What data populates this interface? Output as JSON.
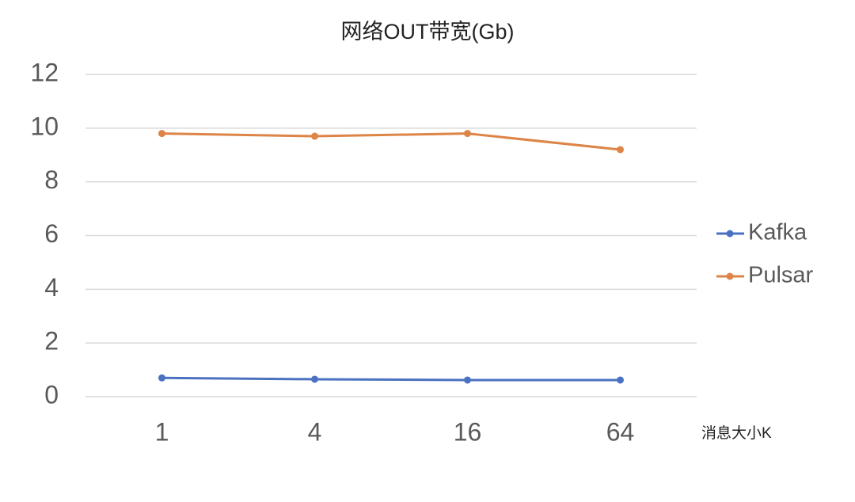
{
  "chart_data": {
    "type": "line",
    "title": "网络OUT带宽(Gb)",
    "x_label": "消息大小K",
    "categories": [
      "1",
      "4",
      "16",
      "64"
    ],
    "series": [
      {
        "name": "Kafka",
        "color": "#4a72c0",
        "values": [
          0.7,
          0.65,
          0.62,
          0.62
        ]
      },
      {
        "name": "Pulsar",
        "color": "#dd8447",
        "values": [
          9.8,
          9.7,
          9.8,
          9.2
        ]
      }
    ],
    "ylim": [
      0,
      12
    ],
    "yticks": [
      0,
      2,
      4,
      6,
      8,
      10,
      12
    ],
    "grid": true,
    "legend": "right"
  }
}
